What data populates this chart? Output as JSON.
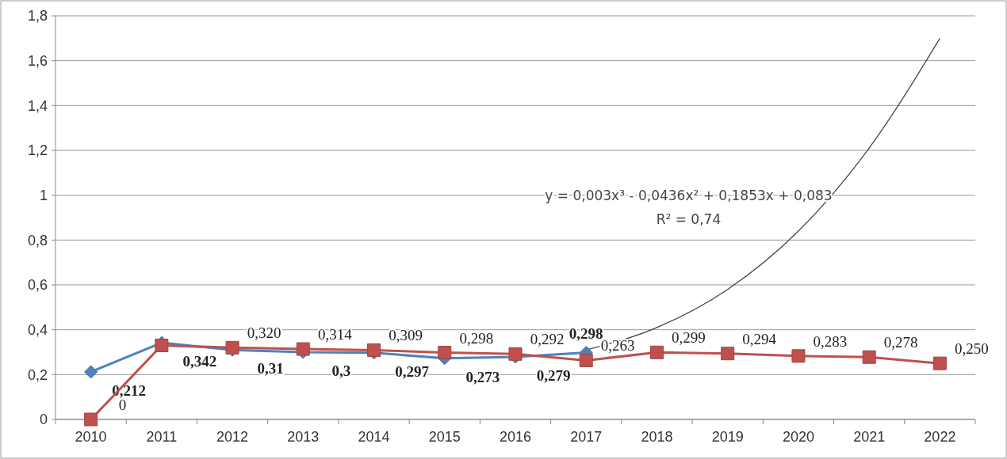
{
  "chart_data": {
    "type": "line",
    "categories": [
      "2010",
      "2011",
      "2012",
      "2013",
      "2014",
      "2015",
      "2016",
      "2017",
      "2018",
      "2019",
      "2020",
      "2021",
      "2022"
    ],
    "ylim": [
      0,
      1.8
    ],
    "yticks": [
      {
        "value": 0,
        "label": "0"
      },
      {
        "value": 0.2,
        "label": "0,2"
      },
      {
        "value": 0.4,
        "label": "0,4"
      },
      {
        "value": 0.6,
        "label": "0,6"
      },
      {
        "value": 0.8,
        "label": "0,8"
      },
      {
        "value": 1,
        "label": "1"
      },
      {
        "value": 1.2,
        "label": "1,2"
      },
      {
        "value": 1.4,
        "label": "1,4"
      },
      {
        "value": 1.6,
        "label": "1,6"
      },
      {
        "value": 1.8,
        "label": "1,8"
      }
    ],
    "grid": "y",
    "series": [
      {
        "color": "#4f81bd",
        "marker": "diamond",
        "values": [
          0.212,
          0.342,
          0.31,
          0.3,
          0.297,
          0.273,
          0.279,
          0.298,
          null,
          null,
          null,
          null,
          null
        ],
        "value_labels": [
          "0,212",
          "0,342",
          "0,31",
          "0,3",
          "0,297",
          "0,273",
          "0,279",
          "0,298",
          null,
          null,
          null,
          null,
          null
        ]
      },
      {
        "color": "#c0504d",
        "marker": "square",
        "values": [
          0,
          0.33,
          0.32,
          0.314,
          0.309,
          0.298,
          0.292,
          0.263,
          0.299,
          0.294,
          0.283,
          0.278,
          0.25
        ],
        "value_labels": [
          "0",
          null,
          "0,320",
          "0,314",
          "0,309",
          "0,298",
          "0,292",
          "0,263",
          "0,299",
          "0,294",
          "0,283",
          "0,278",
          "0,250"
        ]
      },
      {
        "type": "line",
        "color": "#404040",
        "marker": "none",
        "values": [
          null,
          null,
          null,
          null,
          null,
          null,
          null,
          0.31,
          0.41,
          0.58,
          0.84,
          1.21,
          1.7
        ]
      }
    ],
    "annotations": [
      "y = 0,003x³ - 0,0436x² + 0,1853x + 0,083",
      "R² = 0,74"
    ]
  }
}
